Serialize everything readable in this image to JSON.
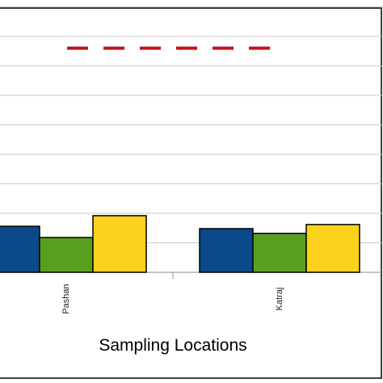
{
  "chart_data": {
    "type": "bar",
    "title": "",
    "xlabel": "Sampling Locations",
    "ylabel": "",
    "categories": [
      "Pashan",
      "Katraj"
    ],
    "series": [
      {
        "color": "#0a4a8a",
        "values": [
          78,
          74
        ]
      },
      {
        "color": "#5a9e1e",
        "values": [
          59,
          66
        ]
      },
      {
        "color": "#fcd21c",
        "values": [
          96,
          81
        ]
      }
    ],
    "reference_line": {
      "value": 380,
      "color": "#c0131b",
      "style": "dashed"
    },
    "ylim": [
      0,
      450
    ],
    "grid": true,
    "legend": "none"
  }
}
